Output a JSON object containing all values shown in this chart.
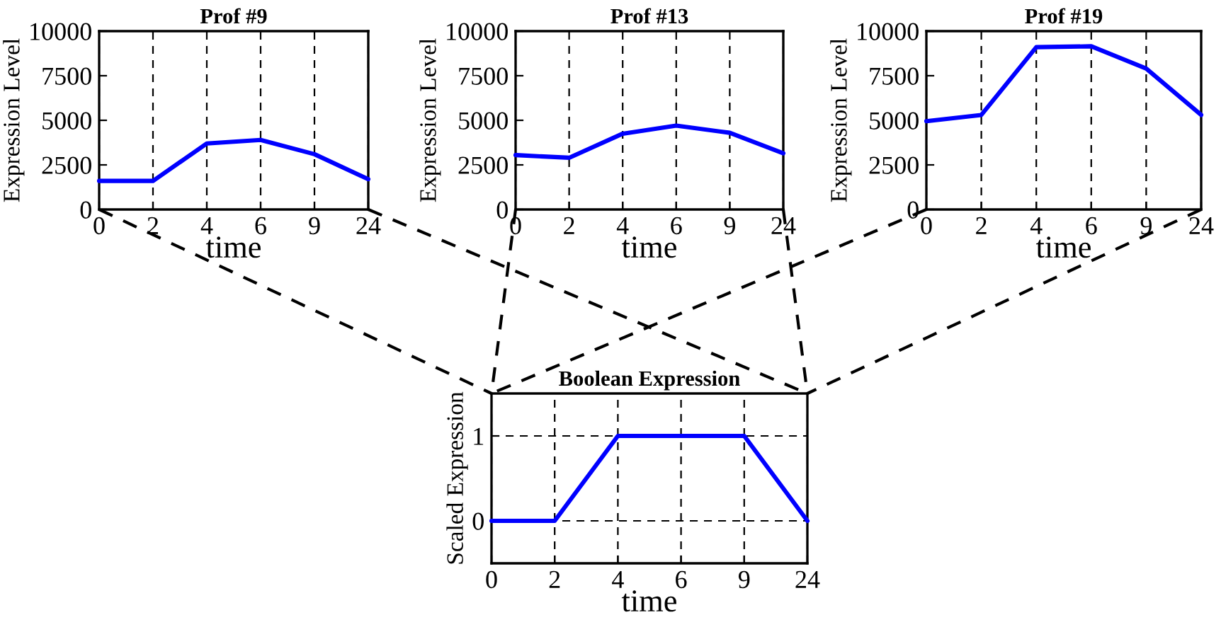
{
  "chart_data": [
    {
      "type": "line",
      "title": "Prof #9",
      "xlabel": "time",
      "ylabel": "Expression Level",
      "categories": [
        "0",
        "2",
        "4",
        "6",
        "9",
        "24"
      ],
      "series": [
        {
          "color": "#0000ff",
          "values": [
            1600,
            1600,
            3700,
            3900,
            3100,
            1700
          ]
        }
      ],
      "ylim": [
        0,
        10000
      ],
      "yticks": [
        0,
        2500,
        5000,
        7500,
        10000
      ],
      "grid": "x"
    },
    {
      "type": "line",
      "title": "Prof #13",
      "xlabel": "time",
      "ylabel": "Expression Level",
      "categories": [
        "0",
        "2",
        "4",
        "6",
        "9",
        "24"
      ],
      "series": [
        {
          "color": "#0000ff",
          "values": [
            3050,
            2900,
            4250,
            4700,
            4300,
            3150
          ]
        }
      ],
      "ylim": [
        0,
        10000
      ],
      "yticks": [
        0,
        2500,
        5000,
        7500,
        10000
      ],
      "grid": "x"
    },
    {
      "type": "line",
      "title": "Prof #19",
      "xlabel": "time",
      "ylabel": "Expression Level",
      "categories": [
        "0",
        "2",
        "4",
        "6",
        "9",
        "24"
      ],
      "series": [
        {
          "color": "#0000ff",
          "values": [
            4950,
            5300,
            9100,
            9150,
            7900,
            5300
          ]
        }
      ],
      "ylim": [
        0,
        10000
      ],
      "yticks": [
        0,
        2500,
        5000,
        7500,
        10000
      ],
      "grid": "x"
    },
    {
      "type": "line",
      "title": "Boolean Expression",
      "xlabel": "time",
      "ylabel": "Scaled Expression",
      "categories": [
        "0",
        "2",
        "4",
        "6",
        "9",
        "24"
      ],
      "series": [
        {
          "color": "#0000ff",
          "values": [
            0,
            0,
            1,
            1,
            1,
            0
          ]
        }
      ],
      "ylim": [
        -0.5,
        1.5
      ],
      "yticks": [
        0,
        1
      ],
      "grid": true
    }
  ]
}
